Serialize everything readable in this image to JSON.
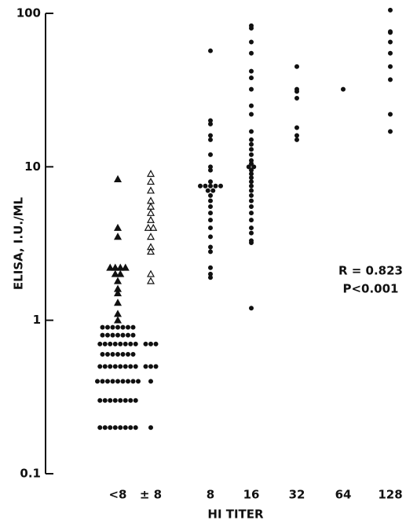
{
  "chart_data": {
    "type": "scatter",
    "y_label": "ELISA, I.U./ML",
    "x_label": "HI TITER",
    "annotations": [
      "R = 0.823",
      "P<0.001"
    ],
    "categories": [
      "<8",
      "± 8",
      "8",
      "16",
      "32",
      "64",
      "128"
    ],
    "log_scale_y": true,
    "ylim": [
      0.1,
      100
    ],
    "yticks": [
      0.1,
      1,
      10,
      100
    ],
    "series": [
      {
        "marker": "circle",
        "filled": true,
        "color": "#111111",
        "values": [
          [
            0.2,
            0.2,
            0.2,
            0.2,
            0.2,
            0.2,
            0.2,
            0.2,
            0.3,
            0.3,
            0.3,
            0.3,
            0.3,
            0.3,
            0.3,
            0.3,
            0.4,
            0.4,
            0.4,
            0.4,
            0.4,
            0.4,
            0.4,
            0.4,
            0.4,
            0.5,
            0.5,
            0.5,
            0.5,
            0.5,
            0.5,
            0.5,
            0.5,
            0.6,
            0.6,
            0.6,
            0.6,
            0.6,
            0.6,
            0.6,
            0.7,
            0.7,
            0.7,
            0.7,
            0.7,
            0.7,
            0.7,
            0.7,
            0.8,
            0.8,
            0.8,
            0.8,
            0.8,
            0.8,
            0.8,
            0.9,
            0.9,
            0.9,
            0.9,
            0.9,
            0.9,
            0.9
          ],
          [
            0.7,
            0.7,
            0.7,
            0.5,
            0.5,
            0.5,
            0.4,
            0.2
          ],
          [
            57,
            20,
            19,
            16,
            15,
            12,
            10,
            9.5,
            8,
            7.5,
            7.5,
            7.5,
            7.5,
            7.5,
            7,
            7,
            6.5,
            6,
            5.5,
            5,
            4.5,
            4,
            3.5,
            3,
            2.8,
            2.2,
            2,
            1.9
          ],
          [
            83,
            80,
            65,
            55,
            42,
            38,
            32,
            25,
            22,
            17,
            15,
            14,
            13,
            12,
            11,
            10.5,
            10,
            10,
            9.5,
            9,
            8.5,
            8,
            7.5,
            7,
            6.5,
            6,
            5.5,
            5,
            4.5,
            4,
            3.7,
            3.3,
            3.2,
            1.2
          ],
          [
            45,
            32,
            31,
            28,
            18,
            16,
            15
          ],
          [
            32
          ],
          [
            105,
            76,
            75,
            65,
            55,
            45,
            37,
            22,
            17
          ]
        ]
      },
      {
        "marker": "triangle",
        "filled": false,
        "color": "#111111",
        "values": [
          [],
          [
            9,
            8,
            7,
            6,
            5.5,
            5,
            4.5,
            4,
            4,
            3.5,
            3,
            2.8,
            2,
            1.8
          ],
          [],
          [],
          [],
          [],
          []
        ]
      },
      {
        "marker": "triangle",
        "filled": true,
        "color": "#111111",
        "values": [
          [
            8.3,
            4,
            3.5,
            2.2,
            2.2,
            2.2,
            2.2,
            2,
            2,
            1.8,
            1.6,
            1.5,
            1.3,
            1.1,
            1
          ],
          [],
          [],
          [],
          [],
          [],
          []
        ]
      }
    ]
  }
}
